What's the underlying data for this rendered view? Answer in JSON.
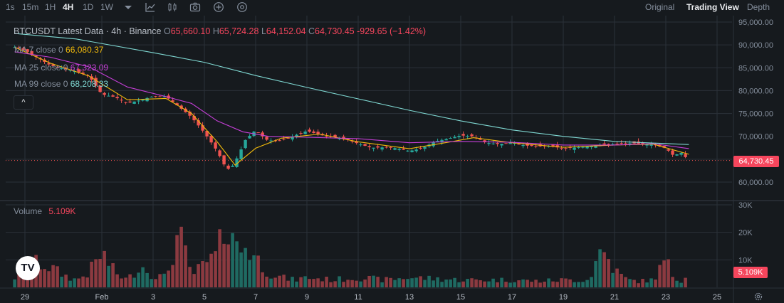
{
  "toolbar": {
    "intervals": [
      "1s",
      "15m",
      "1H",
      "4H",
      "1D",
      "1W"
    ],
    "active_interval": "4H",
    "icons": [
      "chevron-down-icon",
      "indicators-icon",
      "chart-type-icon",
      "camera-icon",
      "plus-circle-icon",
      "settings-circle-icon"
    ],
    "views": [
      "Original",
      "Trading View",
      "Depth"
    ],
    "active_view": "Trading View"
  },
  "legend": {
    "title": "BTCUSDT Latest Data · 4h · Binance",
    "open_label": "O",
    "open": "65,660.10",
    "high_label": "H",
    "high": "65,724.28",
    "low_label": "L",
    "low": "64,152.04",
    "close_label": "C",
    "close": "64,730.45",
    "change": "-929.65 (−1.42%)",
    "ma": [
      {
        "label": "MA 7 close 0",
        "value": "66,080.37",
        "color": "#f0b90b"
      },
      {
        "label": "MA 25 close 0",
        "value": "67,323.09",
        "color": "#c63fd8"
      },
      {
        "label": "MA 99 close 0",
        "value": "68,208.33",
        "color": "#7fd8d2"
      }
    ],
    "collapse_glyph": "^"
  },
  "volume": {
    "label": "Volume",
    "value": "5.109K"
  },
  "price_tag": "64,730.45",
  "volume_tag": "5.109K",
  "colors": {
    "up": "#26a69a",
    "down": "#ef5350",
    "vol_up": "#1f6a62",
    "vol_down": "#8c3a40",
    "grid": "#2b3139"
  },
  "chart_data": {
    "type": "candlestick",
    "title": "BTCUSDT Latest Data · 4h · Binance",
    "price_axis": {
      "ticks": [
        95000,
        90000,
        85000,
        80000,
        75000,
        70000,
        65000,
        60000
      ],
      "labels": [
        "95,000.00",
        "90,000.00",
        "85,000.00",
        "80,000.00",
        "75,000.00",
        "70,000.00",
        "65,000.00",
        "60,000.00"
      ]
    },
    "volume_axis": {
      "ticks": [
        30000,
        20000,
        10000
      ],
      "labels": [
        "30K",
        "20K",
        "10K"
      ]
    },
    "x_labels": [
      "29",
      "Feb",
      "3",
      "5",
      "7",
      "9",
      "11",
      "13",
      "15",
      "17",
      "19",
      "21",
      "23",
      "25"
    ],
    "x_label_days": [
      -2,
      1,
      3,
      5,
      7,
      9,
      11,
      13,
      15,
      17,
      19,
      21,
      23,
      25
    ],
    "series": [
      {
        "name": "Price",
        "points": [
          [
            -2.4,
            89500
          ],
          [
            -2.0,
            88800
          ],
          [
            -1.5,
            87200
          ],
          [
            -1.0,
            85500
          ],
          [
            -0.5,
            84800
          ],
          [
            0.0,
            84200
          ],
          [
            0.5,
            83200
          ],
          [
            1.0,
            79200
          ],
          [
            1.5,
            78600
          ],
          [
            2.0,
            77300
          ],
          [
            2.5,
            77900
          ],
          [
            3.0,
            78800
          ],
          [
            3.5,
            78700
          ],
          [
            4.0,
            76500
          ],
          [
            4.5,
            74200
          ],
          [
            5.0,
            70800
          ],
          [
            5.5,
            66800
          ],
          [
            5.8,
            63500
          ],
          [
            6.0,
            62600
          ],
          [
            6.3,
            65500
          ],
          [
            6.6,
            69200
          ],
          [
            7.0,
            71400
          ],
          [
            7.4,
            69300
          ],
          [
            7.8,
            68900
          ],
          [
            8.3,
            69700
          ],
          [
            9.0,
            71200
          ],
          [
            9.5,
            70300
          ],
          [
            10.0,
            69900
          ],
          [
            10.5,
            69400
          ],
          [
            11.0,
            68400
          ],
          [
            11.5,
            67500
          ],
          [
            12.0,
            67600
          ],
          [
            12.5,
            67400
          ],
          [
            13.0,
            66800
          ],
          [
            13.5,
            67400
          ],
          [
            14.0,
            68900
          ],
          [
            14.5,
            69500
          ],
          [
            15.0,
            70200
          ],
          [
            15.5,
            70000
          ],
          [
            16.0,
            68600
          ],
          [
            16.5,
            68300
          ],
          [
            17.0,
            68700
          ],
          [
            17.5,
            68000
          ],
          [
            18.0,
            67800
          ],
          [
            18.5,
            67900
          ],
          [
            19.0,
            67300
          ],
          [
            19.5,
            67600
          ],
          [
            20.0,
            67800
          ],
          [
            20.5,
            68200
          ],
          [
            21.0,
            68300
          ],
          [
            21.5,
            68500
          ],
          [
            22.0,
            68400
          ],
          [
            22.5,
            68200
          ],
          [
            23.0,
            67400
          ],
          [
            23.3,
            65800
          ],
          [
            23.6,
            66400
          ],
          [
            23.9,
            64730
          ]
        ]
      },
      {
        "name": "MA 7",
        "points": [
          [
            -2.4,
            89500
          ],
          [
            -1.0,
            86000
          ],
          [
            0.5,
            83200
          ],
          [
            2.0,
            78000
          ],
          [
            3.5,
            78300
          ],
          [
            4.5,
            75000
          ],
          [
            5.5,
            68800
          ],
          [
            6.2,
            63700
          ],
          [
            7.0,
            67400
          ],
          [
            8.0,
            69600
          ],
          [
            9.5,
            70500
          ],
          [
            11.0,
            68800
          ],
          [
            13.0,
            67300
          ],
          [
            14.5,
            68700
          ],
          [
            15.5,
            69700
          ],
          [
            17.0,
            68600
          ],
          [
            19.0,
            67600
          ],
          [
            21.0,
            68100
          ],
          [
            22.5,
            68300
          ],
          [
            23.9,
            66080
          ]
        ]
      },
      {
        "name": "MA 25",
        "points": [
          [
            -2.4,
            88500
          ],
          [
            -1.0,
            87300
          ],
          [
            0.5,
            85200
          ],
          [
            2.0,
            80800
          ],
          [
            3.5,
            78700
          ],
          [
            4.5,
            77200
          ],
          [
            5.5,
            73400
          ],
          [
            6.5,
            71000
          ],
          [
            7.5,
            70000
          ],
          [
            9.0,
            69800
          ],
          [
            11.0,
            69500
          ],
          [
            13.0,
            68600
          ],
          [
            15.0,
            68900
          ],
          [
            17.0,
            68700
          ],
          [
            19.0,
            68100
          ],
          [
            21.0,
            68100
          ],
          [
            22.5,
            68400
          ],
          [
            23.9,
            67323
          ]
        ]
      },
      {
        "name": "MA 99",
        "points": [
          [
            -2.4,
            92500
          ],
          [
            0.0,
            91300
          ],
          [
            3.0,
            88300
          ],
          [
            5.0,
            86200
          ],
          [
            7.0,
            83300
          ],
          [
            9.0,
            80700
          ],
          [
            11.0,
            78200
          ],
          [
            13.0,
            75700
          ],
          [
            15.0,
            73400
          ],
          [
            17.0,
            71400
          ],
          [
            19.0,
            70000
          ],
          [
            21.0,
            68900
          ],
          [
            23.9,
            68208
          ]
        ]
      }
    ],
    "volume_series": {
      "name": "Volume",
      "points": [
        [
          -2.4,
          4000
        ],
        [
          -2.0,
          7000
        ],
        [
          -1.5,
          10000
        ],
        [
          -1.0,
          8000
        ],
        [
          -0.5,
          5000
        ],
        [
          0.0,
          3000
        ],
        [
          0.5,
          6000
        ],
        [
          1.0,
          14000
        ],
        [
          1.5,
          6000
        ],
        [
          2.0,
          3000
        ],
        [
          2.5,
          9000
        ],
        [
          3.0,
          5000
        ],
        [
          3.5,
          4000
        ],
        [
          4.0,
          22000
        ],
        [
          4.5,
          5000
        ],
        [
          5.0,
          9000
        ],
        [
          5.5,
          13000
        ],
        [
          5.8,
          25000
        ],
        [
          6.0,
          29000
        ],
        [
          6.3,
          14000
        ],
        [
          6.6,
          17000
        ],
        [
          7.0,
          12000
        ],
        [
          7.5,
          6000
        ],
        [
          8.0,
          4000
        ],
        [
          8.5,
          3000
        ],
        [
          9.0,
          4000
        ],
        [
          10.0,
          3000
        ],
        [
          11.0,
          4000
        ],
        [
          12.0,
          3000
        ],
        [
          13.0,
          4000
        ],
        [
          14.0,
          3500
        ],
        [
          15.0,
          3000
        ],
        [
          16.0,
          3000
        ],
        [
          17.0,
          3000
        ],
        [
          18.0,
          2500
        ],
        [
          19.0,
          3000
        ],
        [
          20.0,
          3000
        ],
        [
          20.5,
          16000
        ],
        [
          21.0,
          7000
        ],
        [
          21.5,
          3000
        ],
        [
          22.0,
          2500
        ],
        [
          22.5,
          3000
        ],
        [
          23.0,
          11000
        ],
        [
          23.3,
          4000
        ],
        [
          23.6,
          3000
        ],
        [
          23.9,
          5109
        ]
      ]
    },
    "last_price": 64730.45,
    "grid": true
  }
}
